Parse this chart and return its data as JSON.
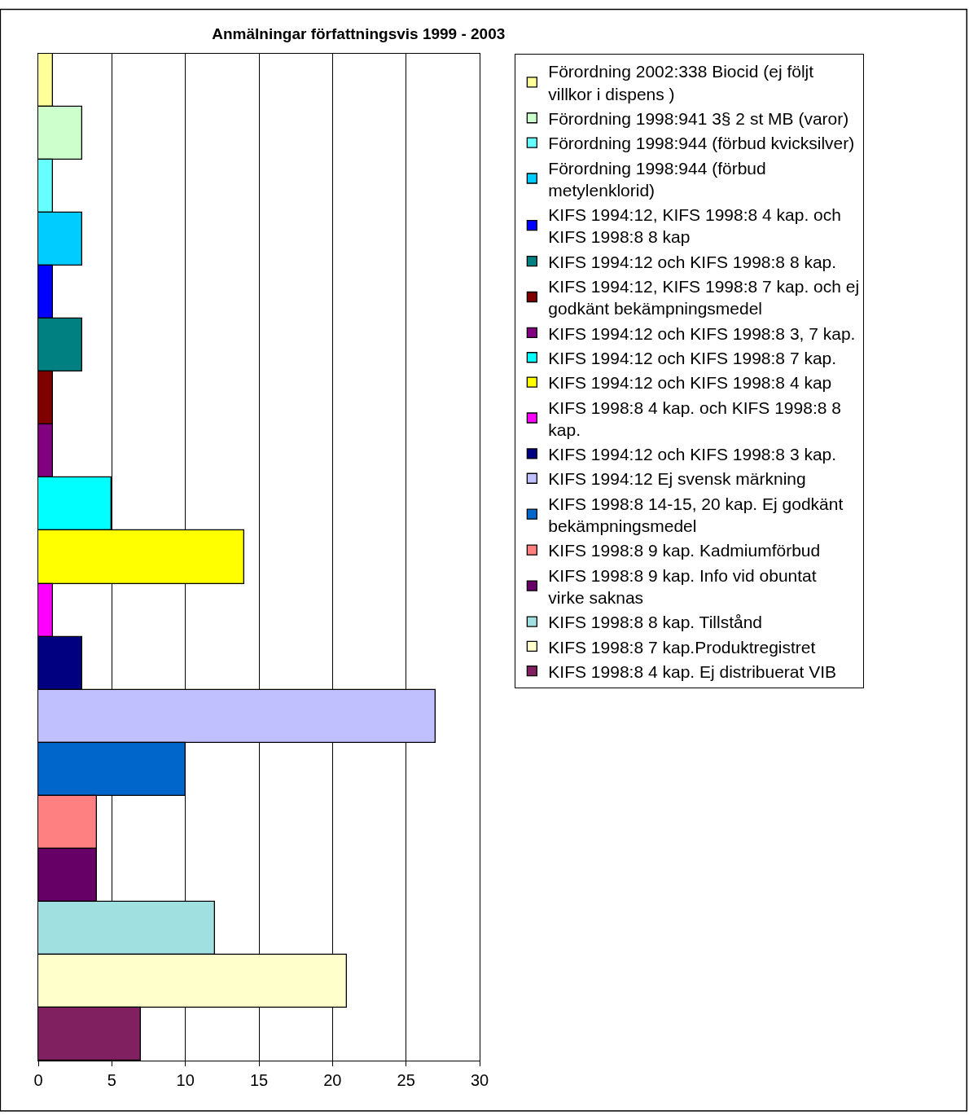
{
  "chart_data": {
    "type": "bar",
    "orientation": "horizontal",
    "title": "Anmälningar författningsvis 1999 - 2003",
    "categories": [
      null,
      null,
      null,
      null,
      null,
      null,
      null,
      null,
      null,
      null,
      null,
      null,
      null,
      null,
      null,
      null,
      null,
      null,
      null
    ],
    "series": [
      {
        "name": "Förordning 2002:338 Biocid (ej följt villkor i dispens )",
        "color": "#ffff99",
        "values": [
          1,
          null,
          null,
          null,
          null,
          null,
          null,
          null,
          null,
          null,
          null,
          null,
          null,
          null,
          null,
          null,
          null,
          null,
          null
        ]
      },
      {
        "name": "Förordning 1998:941 3§ 2 st MB (varor)",
        "color": "#ccffcc",
        "values": [
          null,
          3,
          null,
          null,
          null,
          null,
          null,
          null,
          null,
          null,
          null,
          null,
          null,
          null,
          null,
          null,
          null,
          null,
          null
        ]
      },
      {
        "name": "Förordning 1998:944 (förbud kvicksilver)",
        "color": "#66ffff",
        "values": [
          null,
          null,
          1,
          null,
          null,
          null,
          null,
          null,
          null,
          null,
          null,
          null,
          null,
          null,
          null,
          null,
          null,
          null,
          null
        ]
      },
      {
        "name": "Förordning 1998:944 (förbud metylenklorid)",
        "color": "#00ccff",
        "values": [
          null,
          null,
          null,
          3,
          null,
          null,
          null,
          null,
          null,
          null,
          null,
          null,
          null,
          null,
          null,
          null,
          null,
          null,
          null
        ]
      },
      {
        "name": "KIFS 1994:12, KIFS 1998:8 4 kap. och KIFS 1998:8 8 kap",
        "color": "#0000ff",
        "values": [
          null,
          null,
          null,
          null,
          1,
          null,
          null,
          null,
          null,
          null,
          null,
          null,
          null,
          null,
          null,
          null,
          null,
          null,
          null
        ]
      },
      {
        "name": "KIFS 1994:12 och KIFS 1998:8 8 kap.",
        "color": "#008080",
        "values": [
          null,
          null,
          null,
          null,
          null,
          3,
          null,
          null,
          null,
          null,
          null,
          null,
          null,
          null,
          null,
          null,
          null,
          null,
          null
        ]
      },
      {
        "name": "KIFS 1994:12, KIFS 1998:8 7 kap. och ej godkänt bekämpningsmedel",
        "color": "#800000",
        "values": [
          null,
          null,
          null,
          null,
          null,
          null,
          1,
          null,
          null,
          null,
          null,
          null,
          null,
          null,
          null,
          null,
          null,
          null,
          null
        ]
      },
      {
        "name": "KIFS 1994:12 och KIFS 1998:8 3, 7 kap.",
        "color": "#800080",
        "values": [
          null,
          null,
          null,
          null,
          null,
          null,
          null,
          1,
          null,
          null,
          null,
          null,
          null,
          null,
          null,
          null,
          null,
          null,
          null
        ]
      },
      {
        "name": "KIFS 1994:12 och KIFS 1998:8 7 kap.",
        "color": "#00ffff",
        "values": [
          null,
          null,
          null,
          null,
          null,
          null,
          null,
          null,
          5,
          null,
          null,
          null,
          null,
          null,
          null,
          null,
          null,
          null,
          null
        ]
      },
      {
        "name": "KIFS 1994:12 och KIFS 1998:8 4 kap",
        "color": "#ffff00",
        "values": [
          null,
          null,
          null,
          null,
          null,
          null,
          null,
          null,
          null,
          14,
          null,
          null,
          null,
          null,
          null,
          null,
          null,
          null,
          null
        ]
      },
      {
        "name": "KIFS 1998:8 4 kap. och KIFS 1998:8 8 kap.",
        "color": "#ff00ff",
        "values": [
          null,
          null,
          null,
          null,
          null,
          null,
          null,
          null,
          null,
          null,
          1,
          null,
          null,
          null,
          null,
          null,
          null,
          null,
          null
        ]
      },
      {
        "name": "KIFS 1994:12 och KIFS 1998:8 3 kap.",
        "color": "#000080",
        "values": [
          null,
          null,
          null,
          null,
          null,
          null,
          null,
          null,
          null,
          null,
          null,
          3,
          null,
          null,
          null,
          null,
          null,
          null,
          null
        ]
      },
      {
        "name": "KIFS 1994:12 Ej svensk märkning",
        "color": "#c0c0ff",
        "values": [
          null,
          null,
          null,
          null,
          null,
          null,
          null,
          null,
          null,
          null,
          null,
          null,
          27,
          null,
          null,
          null,
          null,
          null,
          null
        ]
      },
      {
        "name": "KIFS 1998:8 14-15, 20 kap. Ej godkänt bekämpningsmedel",
        "color": "#0066cc",
        "values": [
          null,
          null,
          null,
          null,
          null,
          null,
          null,
          null,
          null,
          null,
          null,
          null,
          null,
          10,
          null,
          null,
          null,
          null,
          null
        ]
      },
      {
        "name": "KIFS 1998:8 9 kap. Kadmiumförbud",
        "color": "#ff8080",
        "values": [
          null,
          null,
          null,
          null,
          null,
          null,
          null,
          null,
          null,
          null,
          null,
          null,
          null,
          null,
          4,
          null,
          null,
          null,
          null
        ]
      },
      {
        "name": "KIFS 1998:8 9 kap. Info vid obuntat virke saknas",
        "color": "#660066",
        "values": [
          null,
          null,
          null,
          null,
          null,
          null,
          null,
          null,
          null,
          null,
          null,
          null,
          null,
          null,
          null,
          4,
          null,
          null,
          null
        ]
      },
      {
        "name": "KIFS 1998:8 8 kap. Tillstånd",
        "color": "#a0e0e0",
        "values": [
          null,
          null,
          null,
          null,
          null,
          null,
          null,
          null,
          null,
          null,
          null,
          null,
          null,
          null,
          null,
          null,
          12,
          null,
          null
        ]
      },
      {
        "name": "KIFS 1998:8 7 kap.Produktregistret",
        "color": "#ffffcc",
        "values": [
          null,
          null,
          null,
          null,
          null,
          null,
          null,
          null,
          null,
          null,
          null,
          null,
          null,
          null,
          null,
          null,
          null,
          21,
          null
        ]
      },
      {
        "name": "KIFS 1998:8 4 kap. Ej distribuerat VIB",
        "color": "#802060",
        "values": [
          null,
          null,
          null,
          null,
          null,
          null,
          null,
          null,
          null,
          null,
          null,
          null,
          null,
          null,
          null,
          null,
          null,
          null,
          7
        ]
      }
    ],
    "xlim": [
      0,
      30
    ],
    "xticks": [
      0,
      5,
      10,
      15,
      20,
      25,
      30
    ],
    "grid": "x",
    "legend": "right",
    "tick_labels": "x"
  }
}
